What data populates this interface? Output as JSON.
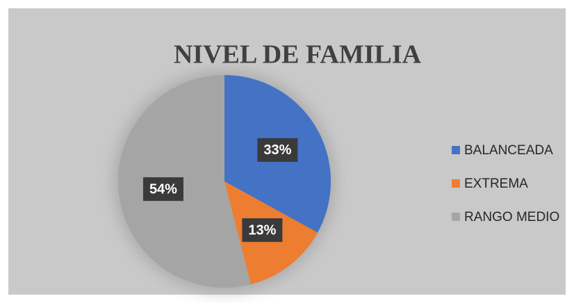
{
  "chart_data": {
    "type": "pie",
    "title": "NIVEL DE FAMILIA",
    "categories": [
      "BALANCEADA",
      "EXTREMA",
      "RANGO MEDIO"
    ],
    "values": [
      33,
      13,
      54
    ],
    "value_labels": [
      "33%",
      "13%",
      "54%"
    ],
    "colors": [
      "#4472c4",
      "#ed7d31",
      "#a5a5a5"
    ],
    "legend": "right"
  }
}
